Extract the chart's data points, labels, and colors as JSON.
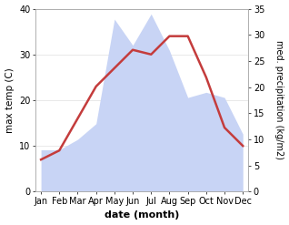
{
  "months": [
    "Jan",
    "Feb",
    "Mar",
    "Apr",
    "May",
    "Jun",
    "Jul",
    "Aug",
    "Sep",
    "Oct",
    "Nov",
    "Dec"
  ],
  "temp": [
    7,
    9,
    16,
    23,
    27,
    31,
    30,
    34,
    34,
    25,
    14,
    10
  ],
  "precip_right": [
    8,
    8,
    10,
    13,
    33,
    28,
    34,
    27,
    18,
    19,
    18,
    11
  ],
  "temp_color": "#c43c3c",
  "precip_color_fill": "#c8d4f5",
  "left_ylim": [
    0,
    40
  ],
  "right_ylim": [
    0,
    35
  ],
  "left_yticks": [
    0,
    10,
    20,
    30,
    40
  ],
  "right_yticks": [
    0,
    5,
    10,
    15,
    20,
    25,
    30,
    35
  ],
  "xlabel": "date (month)",
  "ylabel_left": "max temp (C)",
  "ylabel_right": "med. precipitation (kg/m2)",
  "temp_linewidth": 1.8,
  "fig_bg": "#ffffff"
}
